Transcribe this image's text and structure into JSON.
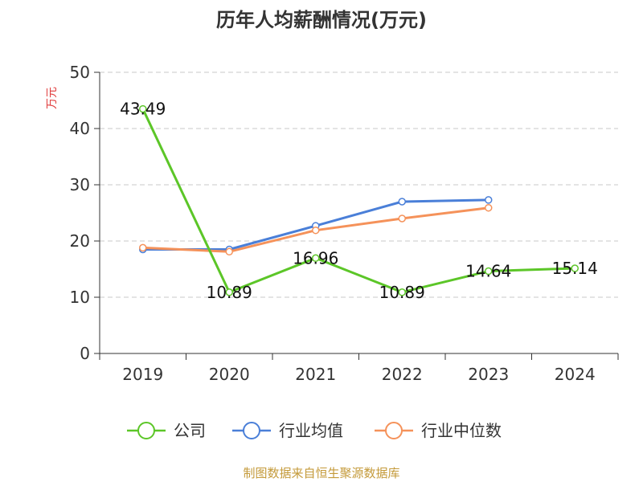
{
  "chart_data": {
    "type": "line",
    "title": "历年人均薪酬情况(万元)",
    "ylabel": "万元",
    "xlabel": "",
    "categories": [
      "2019",
      "2020",
      "2021",
      "2022",
      "2023",
      "2024"
    ],
    "ylim": [
      0,
      50
    ],
    "yticks": [
      0,
      10,
      20,
      30,
      40,
      50
    ],
    "grid": true,
    "legend_position": "bottom",
    "series": [
      {
        "name": "公司",
        "color": "#5cc628",
        "values": [
          43.49,
          10.89,
          16.96,
          10.89,
          14.64,
          15.14
        ],
        "labels": [
          "43.49",
          "10.89",
          "16.96",
          "10.89",
          "14.64",
          "15.14"
        ]
      },
      {
        "name": "行业均值",
        "color": "#4a7fd8",
        "values": [
          18.5,
          18.5,
          22.7,
          27.0,
          27.3,
          null
        ]
      },
      {
        "name": "行业中位数",
        "color": "#f5925a",
        "values": [
          18.8,
          18.1,
          21.9,
          24.0,
          25.9,
          null
        ]
      }
    ]
  },
  "source_text": "制图数据来自恒生聚源数据库"
}
